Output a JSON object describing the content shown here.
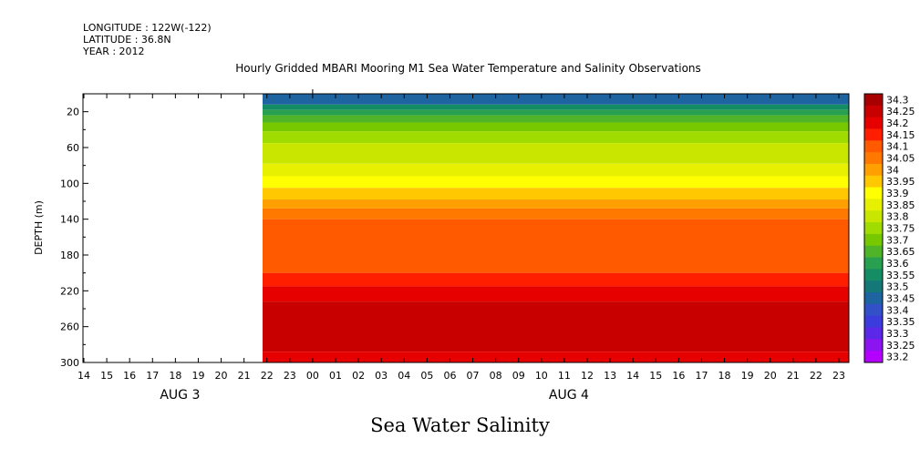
{
  "header": {
    "longitude": "LONGITUDE : 122W(-122)",
    "latitude": "LATITUDE : 36.8N",
    "year": "YEAR : 2012"
  },
  "chart_data": {
    "type": "heatmap",
    "title": "Hourly Gridded MBARI Mooring M1 Sea Water Temperature and Salinity Observations",
    "footer_title": "Sea Water Salinity",
    "xlabel": "",
    "ylabel": "DEPTH (m)",
    "x_tick_labels": [
      "14",
      "15",
      "16",
      "17",
      "18",
      "19",
      "20",
      "21",
      "22",
      "23",
      "00",
      "01",
      "02",
      "03",
      "04",
      "05",
      "06",
      "07",
      "08",
      "09",
      "10",
      "11",
      "12",
      "13",
      "14",
      "15",
      "16",
      "17",
      "18",
      "19",
      "20",
      "21",
      "22",
      "23"
    ],
    "x_date_labels": [
      {
        "label": "AUG 3",
        "hour_index": 4
      },
      {
        "label": "AUG 4",
        "hour_index": 21
      }
    ],
    "x_range": [
      0,
      33
    ],
    "data_start_hour_index": 8,
    "ylim": [
      300,
      0
    ],
    "y_ticks": [
      20,
      60,
      100,
      140,
      180,
      220,
      260,
      300
    ],
    "colorbar": {
      "levels": [
        "34.3",
        "34.25",
        "34.2",
        "34.15",
        "34.1",
        "34.05",
        "34",
        "33.95",
        "33.9",
        "33.85",
        "33.8",
        "33.75",
        "33.7",
        "33.65",
        "33.6",
        "33.55",
        "33.5",
        "33.45",
        "33.4",
        "33.35",
        "33.3",
        "33.25",
        "33.2"
      ],
      "colors": [
        "#a80000",
        "#c80000",
        "#e60000",
        "#ff1e00",
        "#ff5a00",
        "#ff7800",
        "#ffa000",
        "#ffc800",
        "#ffff00",
        "#e6f000",
        "#c8e600",
        "#a0dc00",
        "#78c800",
        "#50b428",
        "#28a050",
        "#148c64",
        "#147878",
        "#1e64a0",
        "#3250c8",
        "#3c3cdc",
        "#5a28e6",
        "#8c14f0",
        "#b400ff"
      ],
      "range": [
        33.2,
        34.3
      ]
    },
    "bands": [
      {
        "from": 4,
        "to": 12,
        "value": 33.45
      },
      {
        "from": 12,
        "to": 18,
        "value": 33.55
      },
      {
        "from": 18,
        "to": 24,
        "value": 33.6
      },
      {
        "from": 24,
        "to": 32,
        "value": 33.65
      },
      {
        "from": 32,
        "to": 42,
        "value": 33.7
      },
      {
        "from": 42,
        "to": 55,
        "value": 33.75
      },
      {
        "from": 55,
        "to": 78,
        "value": 33.8
      },
      {
        "from": 78,
        "to": 92,
        "value": 33.85
      },
      {
        "from": 92,
        "to": 105,
        "value": 33.9
      },
      {
        "from": 105,
        "to": 118,
        "value": 33.95
      },
      {
        "from": 118,
        "to": 128,
        "value": 34.0
      },
      {
        "from": 128,
        "to": 140,
        "value": 34.05
      },
      {
        "from": 140,
        "to": 200,
        "value": 34.1
      },
      {
        "from": 200,
        "to": 215,
        "value": 34.15
      },
      {
        "from": 215,
        "to": 232,
        "value": 34.2
      },
      {
        "from": 232,
        "to": 288,
        "value": 34.25
      },
      {
        "from": 288,
        "to": 300,
        "value": 34.2
      }
    ]
  }
}
